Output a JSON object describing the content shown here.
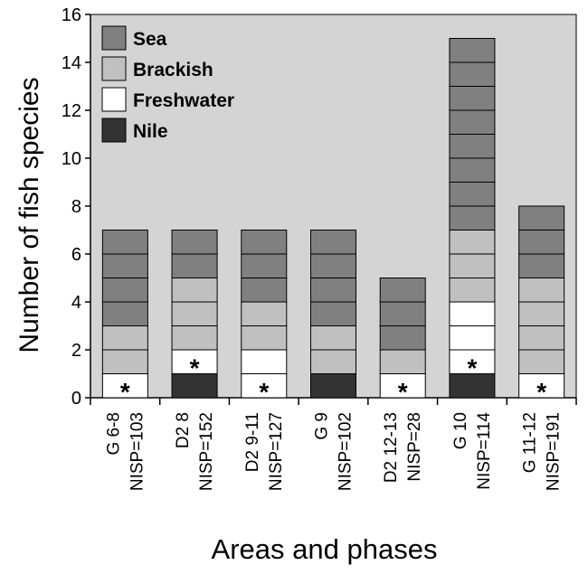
{
  "chart_data": {
    "type": "bar",
    "stacked": true,
    "xlabel": "Areas and phases",
    "ylabel": "Number of fish species",
    "ylim": [
      0,
      16
    ],
    "yticks": [
      0,
      2,
      4,
      6,
      8,
      10,
      12,
      14,
      16
    ],
    "grid": false,
    "legend_position": "top-left",
    "categories": [
      [
        "G 6-8",
        "NISP=103"
      ],
      [
        "D2 8",
        "NISP=152"
      ],
      [
        "D2 9-11",
        "NISP=127"
      ],
      [
        "G 9",
        "NISP=102"
      ],
      [
        "D2 12-13",
        "NISP=28"
      ],
      [
        "G 10",
        "NISP=114"
      ],
      [
        "G 11-12",
        "NISP=191"
      ]
    ],
    "series": [
      {
        "name": "Nile",
        "color": "#333333",
        "values": [
          0,
          1,
          0,
          1,
          0,
          1,
          0
        ]
      },
      {
        "name": "Freshwater",
        "color": "#ffffff",
        "values": [
          1,
          1,
          2,
          0,
          1,
          3,
          1
        ]
      },
      {
        "name": "Brackish",
        "color": "#c0c0c0",
        "values": [
          2,
          3,
          2,
          2,
          1,
          3,
          4
        ]
      },
      {
        "name": "Sea",
        "color": "#808080",
        "values": [
          4,
          2,
          3,
          4,
          3,
          8,
          3
        ]
      }
    ],
    "legend_order": [
      "Sea",
      "Brackish",
      "Freshwater",
      "Nile"
    ],
    "annotations": [
      {
        "category_index": 0,
        "text": "*",
        "y": 0.5
      },
      {
        "category_index": 1,
        "text": "*",
        "y": 1.5
      },
      {
        "category_index": 2,
        "text": "*",
        "y": 0.5
      },
      {
        "category_index": 4,
        "text": "*",
        "y": 0.5
      },
      {
        "category_index": 5,
        "text": "*",
        "y": 1.5
      },
      {
        "category_index": 6,
        "text": "*",
        "y": 0.5
      }
    ],
    "plot_background": "#d4d4d4"
  }
}
